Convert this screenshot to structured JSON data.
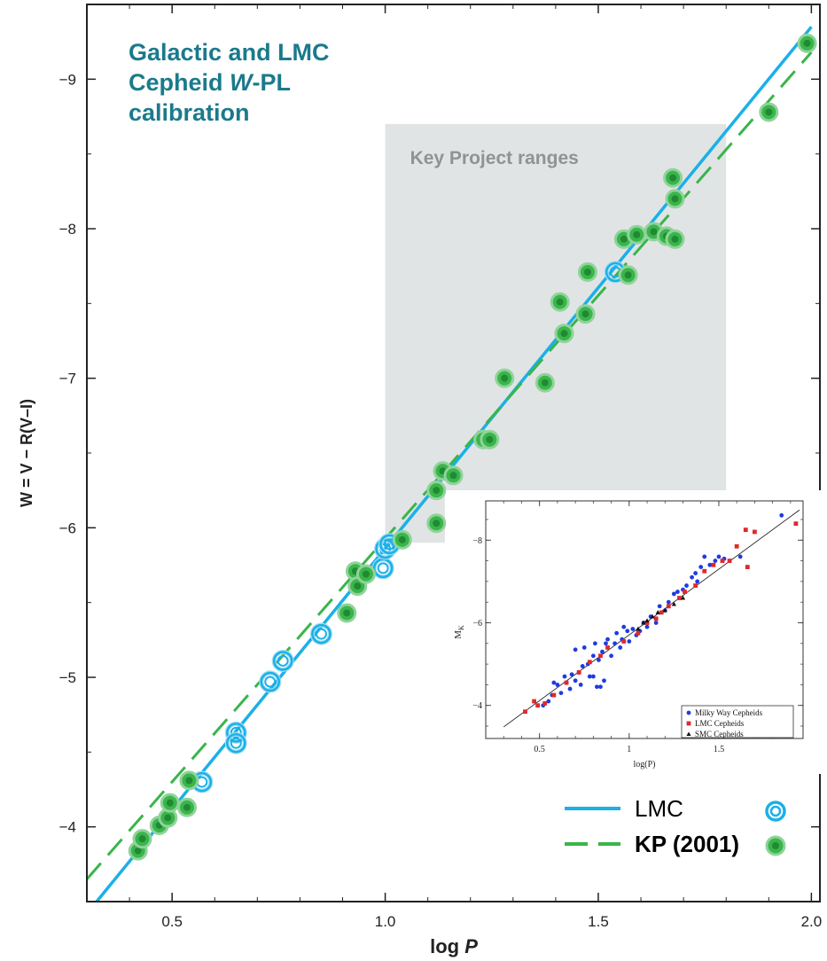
{
  "chart_data": [
    {
      "type": "scatter",
      "title": "Galactic and LMC\nCepheid W-PL\ncalibration",
      "title_color": "#1a7a8c",
      "xlabel": "log P",
      "ylabel": "W = V − R(V–I)",
      "xlim": [
        0.3,
        2.02
      ],
      "ylim": [
        -3.5,
        -9.5
      ],
      "y_inverted": true,
      "x_ticks": [
        0.5,
        1.0,
        1.5,
        2.0
      ],
      "x_tick_labels": [
        "0.5",
        "1.0",
        "1.5",
        "2.0"
      ],
      "y_ticks": [
        -4,
        -5,
        -6,
        -7,
        -8,
        -9
      ],
      "y_tick_labels": [
        "−4",
        "−5",
        "−6",
        "−7",
        "−8",
        "−9"
      ],
      "shaded_region": {
        "label": "Key Project ranges",
        "x_range": [
          1.0,
          1.8
        ],
        "y_range": [
          -6.25,
          -8.7
        ],
        "notch": {
          "x_range": [
            1.0,
            1.14
          ],
          "y_range": [
            -5.9,
            -6.25
          ]
        },
        "color": "#e1e4e4"
      },
      "lines": [
        {
          "name": "LMC",
          "color": "#1ab0e8",
          "style": "solid",
          "points": [
            [
              0.3,
              -3.42
            ],
            [
              2.0,
              -9.35
            ]
          ]
        },
        {
          "name": "KP (2001)",
          "color": "#3ab54a",
          "style": "dashed",
          "points": [
            [
              0.3,
              -3.65
            ],
            [
              2.0,
              -9.18
            ]
          ]
        }
      ],
      "series": [
        {
          "name": "LMC",
          "marker": "open-circle",
          "color": "#1ab0e8",
          "points": [
            [
              0.57,
              -4.3
            ],
            [
              0.65,
              -4.63
            ],
            [
              0.65,
              -4.56
            ],
            [
              0.73,
              -4.97
            ],
            [
              0.76,
              -5.11
            ],
            [
              0.85,
              -5.29
            ],
            [
              0.995,
              -5.73
            ],
            [
              1.0,
              -5.86
            ],
            [
              1.01,
              -5.89
            ],
            [
              1.54,
              -7.71
            ]
          ]
        },
        {
          "name": "KP (2001)",
          "marker": "filled-circle",
          "color": "#3ab54a",
          "points": [
            [
              0.42,
              -3.84
            ],
            [
              0.43,
              -3.92
            ],
            [
              0.47,
              -4.01
            ],
            [
              0.49,
              -4.06
            ],
            [
              0.495,
              -4.16
            ],
            [
              0.535,
              -4.13
            ],
            [
              0.54,
              -4.31
            ],
            [
              0.91,
              -5.43
            ],
            [
              0.93,
              -5.71
            ],
            [
              0.935,
              -5.61
            ],
            [
              0.955,
              -5.69
            ],
            [
              1.04,
              -5.92
            ],
            [
              1.12,
              -6.03
            ],
            [
              1.12,
              -6.25
            ],
            [
              1.135,
              -6.38
            ],
            [
              1.16,
              -6.35
            ],
            [
              1.23,
              -6.59
            ],
            [
              1.245,
              -6.59
            ],
            [
              1.28,
              -7.0
            ],
            [
              1.375,
              -6.97
            ],
            [
              1.41,
              -7.51
            ],
            [
              1.42,
              -7.3
            ],
            [
              1.47,
              -7.43
            ],
            [
              1.475,
              -7.71
            ],
            [
              1.56,
              -7.93
            ],
            [
              1.57,
              -7.69
            ],
            [
              1.59,
              -7.96
            ],
            [
              1.63,
              -7.98
            ],
            [
              1.66,
              -7.95
            ],
            [
              1.675,
              -8.34
            ],
            [
              1.68,
              -8.2
            ],
            [
              1.68,
              -7.93
            ],
            [
              1.9,
              -8.78
            ],
            [
              1.99,
              -9.24
            ]
          ]
        }
      ],
      "legend": {
        "placement": "bottom-right",
        "entries": [
          {
            "label": "LMC",
            "line": "solid",
            "marker": "open-circle",
            "color": "#1ab0e8"
          },
          {
            "label": "KP (2001)",
            "line": "dashed",
            "marker": "filled-circle",
            "color": "#3ab54a"
          }
        ]
      }
    },
    {
      "type": "scatter",
      "title": "",
      "xlabel": "log(P)",
      "ylabel": "M_K",
      "xlim": [
        0.2,
        1.97
      ],
      "ylim": [
        -3.2,
        -8.95
      ],
      "y_inverted": true,
      "x_ticks": [
        0.5,
        1.0,
        1.5
      ],
      "x_tick_labels": [
        "0.5",
        "1",
        "1.5"
      ],
      "y_ticks": [
        -4,
        -6,
        -8
      ],
      "y_tick_labels": [
        "−4",
        "−6",
        "−8"
      ],
      "fit_line": {
        "points": [
          [
            0.3,
            -3.48
          ],
          [
            1.95,
            -8.73
          ]
        ]
      },
      "series": [
        {
          "name": "Milky Way Cepheids",
          "marker": "circle",
          "color": "#1f3be0",
          "points": [
            [
              0.52,
              -4.0
            ],
            [
              0.55,
              -4.1
            ],
            [
              0.57,
              -4.25
            ],
            [
              0.58,
              -4.55
            ],
            [
              0.6,
              -4.5
            ],
            [
              0.62,
              -4.3
            ],
            [
              0.64,
              -4.7
            ],
            [
              0.65,
              -4.55
            ],
            [
              0.67,
              -4.4
            ],
            [
              0.68,
              -4.75
            ],
            [
              0.7,
              -4.6
            ],
            [
              0.7,
              -5.35
            ],
            [
              0.72,
              -4.8
            ],
            [
              0.73,
              -4.5
            ],
            [
              0.74,
              -4.95
            ],
            [
              0.75,
              -5.4
            ],
            [
              0.77,
              -5.0
            ],
            [
              0.78,
              -4.7
            ],
            [
              0.8,
              -4.7
            ],
            [
              0.8,
              -5.2
            ],
            [
              0.81,
              -5.5
            ],
            [
              0.82,
              -4.45
            ],
            [
              0.83,
              -5.1
            ],
            [
              0.84,
              -4.45
            ],
            [
              0.85,
              -5.3
            ],
            [
              0.86,
              -4.6
            ],
            [
              0.87,
              -5.5
            ],
            [
              0.88,
              -5.6
            ],
            [
              0.9,
              -5.2
            ],
            [
              0.92,
              -5.5
            ],
            [
              0.93,
              -5.75
            ],
            [
              0.95,
              -5.4
            ],
            [
              0.96,
              -5.6
            ],
            [
              0.97,
              -5.9
            ],
            [
              0.99,
              -5.8
            ],
            [
              1.0,
              -5.55
            ],
            [
              1.02,
              -5.85
            ],
            [
              1.04,
              -5.7
            ],
            [
              1.06,
              -5.8
            ],
            [
              1.08,
              -6.0
            ],
            [
              1.1,
              -5.9
            ],
            [
              1.12,
              -6.15
            ],
            [
              1.15,
              -6.0
            ],
            [
              1.17,
              -6.4
            ],
            [
              1.2,
              -6.3
            ],
            [
              1.22,
              -6.5
            ],
            [
              1.25,
              -6.7
            ],
            [
              1.27,
              -6.75
            ],
            [
              1.3,
              -6.8
            ],
            [
              1.32,
              -6.9
            ],
            [
              1.35,
              -7.1
            ],
            [
              1.37,
              -7.2
            ],
            [
              1.38,
              -7.0
            ],
            [
              1.4,
              -7.35
            ],
            [
              1.42,
              -7.6
            ],
            [
              1.45,
              -7.4
            ],
            [
              1.48,
              -7.5
            ],
            [
              1.5,
              -7.6
            ],
            [
              1.53,
              -7.55
            ],
            [
              1.62,
              -7.6
            ],
            [
              1.85,
              -8.6
            ]
          ]
        },
        {
          "name": "LMC Cepheids",
          "marker": "square",
          "color": "#e0282b",
          "points": [
            [
              0.42,
              -3.85
            ],
            [
              0.47,
              -4.1
            ],
            [
              0.49,
              -4.0
            ],
            [
              0.53,
              -4.05
            ],
            [
              0.58,
              -4.25
            ],
            [
              0.65,
              -4.55
            ],
            [
              0.72,
              -4.8
            ],
            [
              0.78,
              -5.05
            ],
            [
              0.84,
              -5.2
            ],
            [
              0.88,
              -5.4
            ],
            [
              0.97,
              -5.55
            ],
            [
              1.05,
              -5.75
            ],
            [
              1.1,
              -6.0
            ],
            [
              1.15,
              -6.1
            ],
            [
              1.18,
              -6.25
            ],
            [
              1.22,
              -6.4
            ],
            [
              1.28,
              -6.6
            ],
            [
              1.31,
              -6.75
            ],
            [
              1.37,
              -6.9
            ],
            [
              1.42,
              -7.25
            ],
            [
              1.47,
              -7.4
            ],
            [
              1.52,
              -7.5
            ],
            [
              1.56,
              -7.5
            ],
            [
              1.6,
              -7.85
            ],
            [
              1.65,
              -8.25
            ],
            [
              1.66,
              -7.35
            ],
            [
              1.7,
              -8.2
            ],
            [
              1.93,
              -8.4
            ]
          ]
        },
        {
          "name": "SMC Cepheids",
          "marker": "triangle",
          "color": "#111111",
          "points": [
            [
              1.05,
              -5.85
            ],
            [
              1.08,
              -6.0
            ],
            [
              1.1,
              -6.05
            ],
            [
              1.13,
              -6.15
            ],
            [
              1.16,
              -6.25
            ],
            [
              1.2,
              -6.3
            ],
            [
              1.25,
              -6.45
            ],
            [
              1.3,
              -6.6
            ]
          ]
        }
      ],
      "legend": {
        "placement": "bottom-right",
        "entries": [
          {
            "label": "Milky Way Cepheids",
            "marker": "circle",
            "color": "#1f3be0"
          },
          {
            "label": "LMC Cepheids",
            "marker": "square",
            "color": "#e0282b"
          },
          {
            "label": "SMC Cepheids",
            "marker": "triangle",
            "color": "#111111"
          }
        ]
      }
    }
  ]
}
